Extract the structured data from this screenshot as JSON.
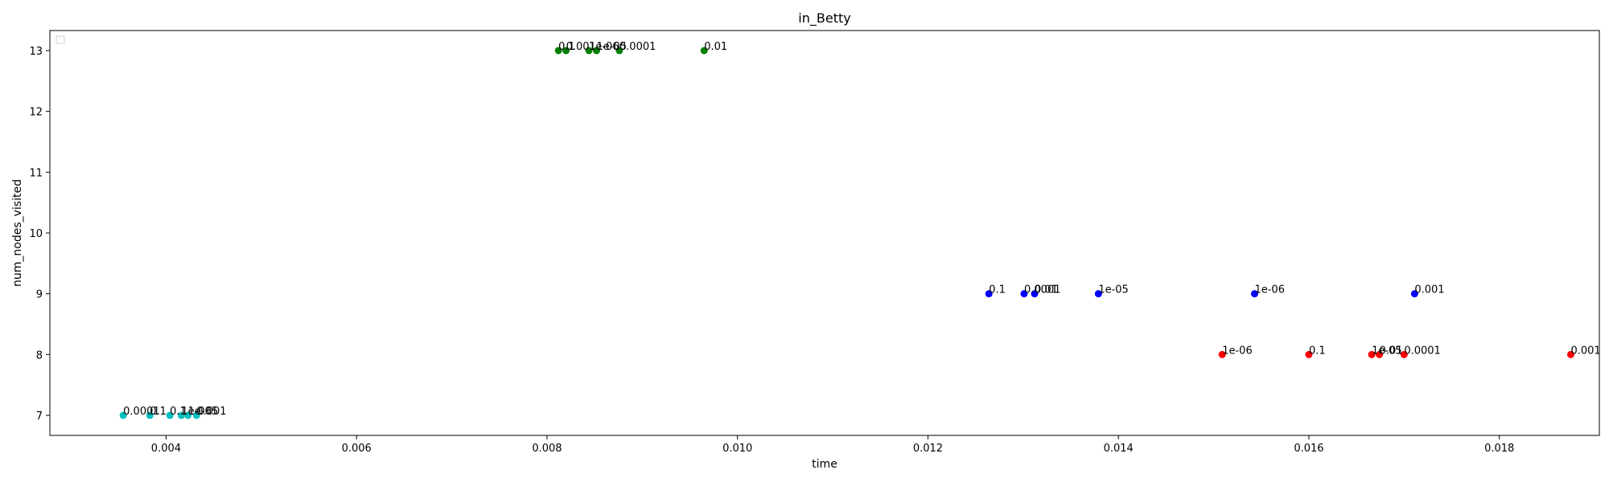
{
  "chart_data": {
    "type": "scatter",
    "title": "in_Betty",
    "xlabel": "time",
    "ylabel": "num_nodes_visited",
    "xlim": [
      0.00278,
      0.01905
    ],
    "ylim": [
      6.67,
      13.33
    ],
    "x_ticks": [
      "0.004",
      "0.006",
      "0.008",
      "0.010",
      "0.012",
      "0.014",
      "0.016",
      "0.018"
    ],
    "x_tick_values": [
      0.004,
      0.006,
      0.008,
      0.01,
      0.012,
      0.014,
      0.016,
      0.018
    ],
    "y_ticks": [
      "7",
      "8",
      "9",
      "10",
      "11",
      "12",
      "13"
    ],
    "y_tick_values": [
      7,
      8,
      9,
      10,
      11,
      12,
      13
    ],
    "grid": false,
    "legend": "top-left (empty)",
    "series": [
      {
        "color": "#008000",
        "points": [
          {
            "x": 0.00812,
            "y": 13,
            "label": "0.1"
          },
          {
            "x": 0.0082,
            "y": 13,
            "label": "0.001"
          },
          {
            "x": 0.00844,
            "y": 13,
            "label": "1e-06"
          },
          {
            "x": 0.00852,
            "y": 13,
            "label": "1e-05"
          },
          {
            "x": 0.00876,
            "y": 13,
            "label": "0.0001"
          },
          {
            "x": 0.00965,
            "y": 13,
            "label": "0.01"
          }
        ]
      },
      {
        "color": "#0000ff",
        "points": [
          {
            "x": 0.01264,
            "y": 9,
            "label": "0.1"
          },
          {
            "x": 0.01301,
            "y": 9,
            "label": "0.0001"
          },
          {
            "x": 0.01312,
            "y": 9,
            "label": "0.01"
          },
          {
            "x": 0.01379,
            "y": 9,
            "label": "1e-05"
          },
          {
            "x": 0.01543,
            "y": 9,
            "label": "1e-06"
          },
          {
            "x": 0.01711,
            "y": 9,
            "label": "0.001"
          }
        ]
      },
      {
        "color": "#ff0000",
        "points": [
          {
            "x": 0.01509,
            "y": 8,
            "label": "1e-06"
          },
          {
            "x": 0.016,
            "y": 8,
            "label": "0.1"
          },
          {
            "x": 0.01666,
            "y": 8,
            "label": "1e-05"
          },
          {
            "x": 0.01674,
            "y": 8,
            "label": "0.01"
          },
          {
            "x": 0.017,
            "y": 8,
            "label": "0.0001"
          },
          {
            "x": 0.01875,
            "y": 8,
            "label": "0.001"
          }
        ]
      },
      {
        "color": "#00bfbf",
        "points": [
          {
            "x": 0.00355,
            "y": 7,
            "label": "0.0001"
          },
          {
            "x": 0.00383,
            "y": 7,
            "label": "0.1"
          },
          {
            "x": 0.00404,
            "y": 7,
            "label": "0.1"
          },
          {
            "x": 0.00416,
            "y": 7,
            "label": "1e-06"
          },
          {
            "x": 0.00423,
            "y": 7,
            "label": "1e-05"
          },
          {
            "x": 0.00432,
            "y": 7,
            "label": "0.001"
          }
        ]
      }
    ]
  }
}
